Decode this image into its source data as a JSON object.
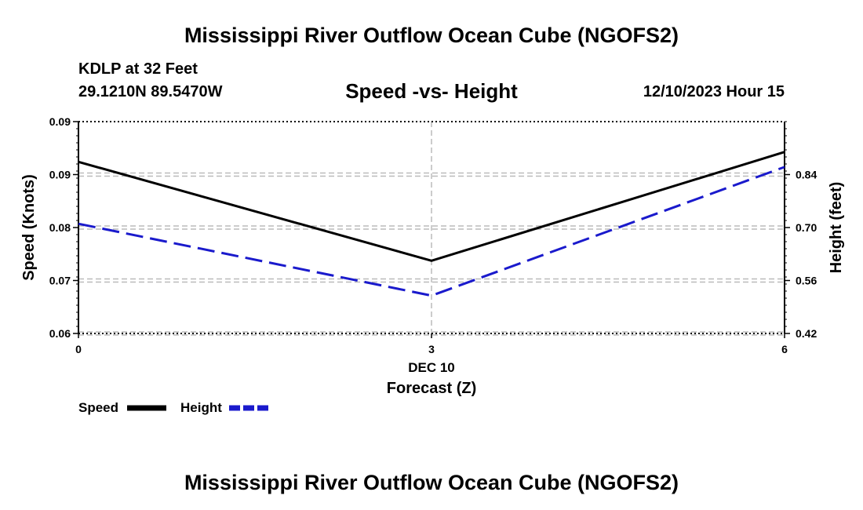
{
  "header": {
    "title": "Mississippi River Outflow Ocean Cube (NGOFS2)",
    "station": "KDLP at 32 Feet",
    "coords": "29.1210N  89.5470W",
    "subtitle": "Speed -vs- Height",
    "datetime": "12/10/2023 Hour 15"
  },
  "footer": {
    "title": "Mississippi River Outflow Ocean Cube (NGOFS2)"
  },
  "chart_data": {
    "type": "line",
    "title": "Speed -vs- Height",
    "xlabel": "Forecast (Z)",
    "x_sublabel": "DEC 10",
    "x": [
      0,
      3,
      6
    ],
    "xlim": [
      0,
      6
    ],
    "x_ticks": [
      "0",
      "3",
      "6"
    ],
    "ylabel_left": "Speed (Knots)",
    "ylim_left": [
      0.06,
      0.09
    ],
    "y_ticks_left": [
      "0.06",
      "0.07",
      "0.08",
      "0.09",
      "0.09"
    ],
    "ylabel_right": "Height (feet)",
    "ylim_right": [
      0.42,
      0.98
    ],
    "y_ticks_right": [
      {
        "value": 0.42,
        "label": "0.42"
      },
      {
        "value": 0.56,
        "label": "0.56"
      },
      {
        "value": 0.7,
        "label": "0.70"
      },
      {
        "value": 0.84,
        "label": "0.84"
      }
    ],
    "series": [
      {
        "name": "Speed",
        "axis": "left",
        "color": "#000000",
        "dash": "solid",
        "values": [
          0.0843,
          0.0703,
          0.0857
        ]
      },
      {
        "name": "Height",
        "axis": "right",
        "color": "#1a1acc",
        "dash": "dashed",
        "values": [
          0.71,
          0.52,
          0.86
        ]
      }
    ],
    "legend": [
      "Speed",
      "Height"
    ],
    "legend_position": "bottom-left",
    "grid": true
  }
}
